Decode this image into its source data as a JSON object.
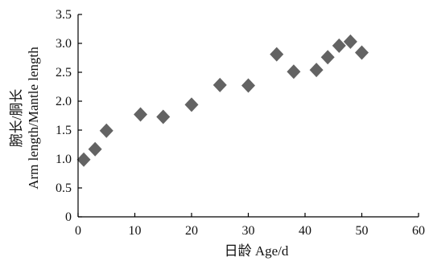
{
  "chart_data": {
    "type": "scatter",
    "title": "",
    "xlabel": "日龄 Age/d",
    "ylabel_lines": [
      "腕长/胴长",
      "Arm length/Mantle length"
    ],
    "xlim": [
      0,
      60
    ],
    "ylim": [
      0,
      3.5
    ],
    "x_ticks": [
      "0",
      "10",
      "20",
      "30",
      "40",
      "50",
      "60"
    ],
    "y_ticks": [
      "0",
      "0.5",
      "1.0",
      "1.5",
      "2.0",
      "2.5",
      "3.0",
      "3.5"
    ],
    "grid": false,
    "legend": "none",
    "marker": "diamond",
    "marker_color": "#636363",
    "points": [
      {
        "x": 1,
        "y": 0.99
      },
      {
        "x": 3,
        "y": 1.17
      },
      {
        "x": 5,
        "y": 1.49
      },
      {
        "x": 11,
        "y": 1.77
      },
      {
        "x": 15,
        "y": 1.73
      },
      {
        "x": 20,
        "y": 1.94
      },
      {
        "x": 25,
        "y": 2.28
      },
      {
        "x": 30,
        "y": 2.27
      },
      {
        "x": 35,
        "y": 2.81
      },
      {
        "x": 38,
        "y": 2.51
      },
      {
        "x": 42,
        "y": 2.54
      },
      {
        "x": 44,
        "y": 2.76
      },
      {
        "x": 46,
        "y": 2.96
      },
      {
        "x": 48,
        "y": 3.03
      },
      {
        "x": 50,
        "y": 2.84
      }
    ]
  }
}
